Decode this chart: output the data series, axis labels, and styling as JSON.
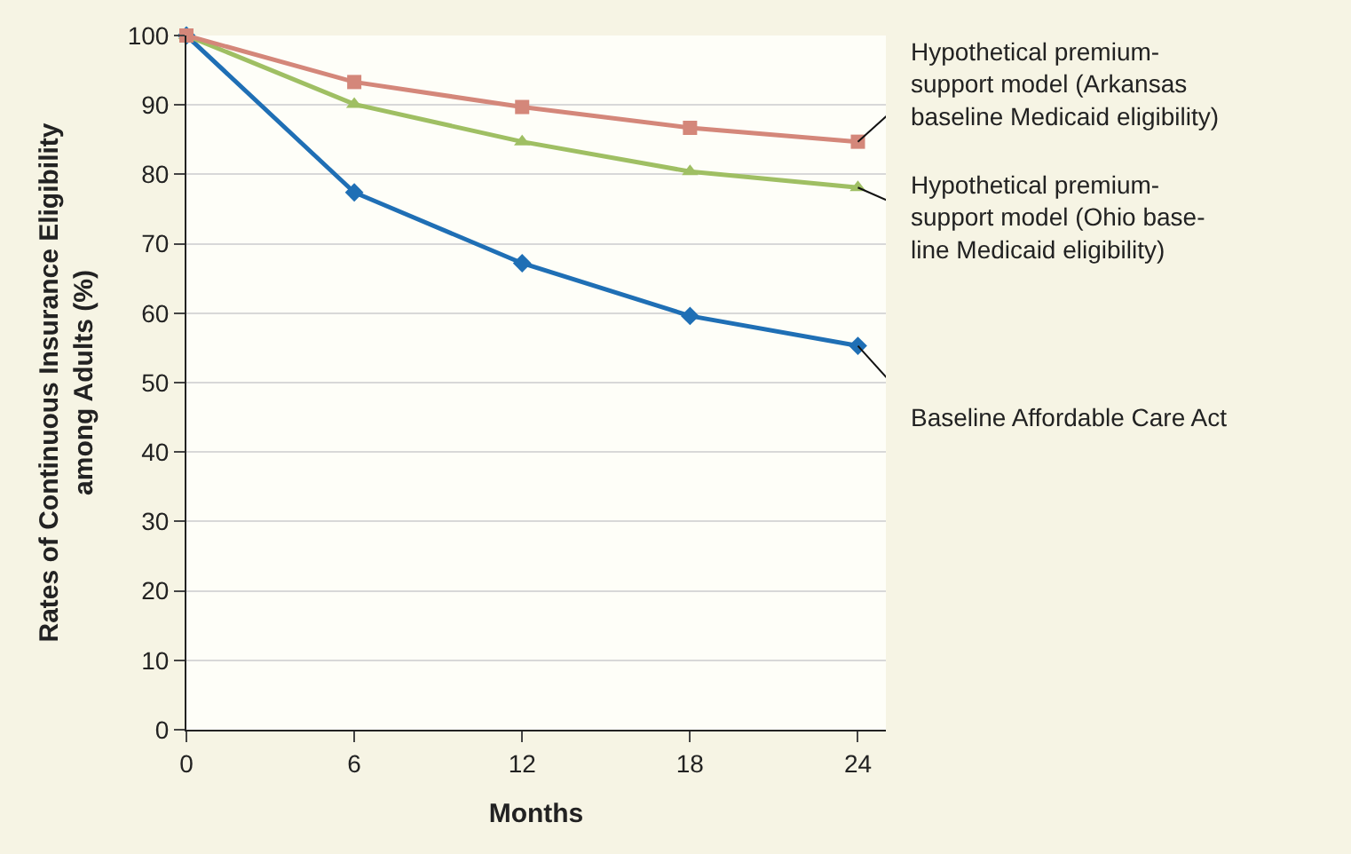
{
  "chart_data": {
    "type": "line",
    "xlabel": "Months",
    "ylabel": "Rates of Continuous Insurance Eligibility\namong Adults (%)",
    "x": [
      0,
      6,
      12,
      18,
      24
    ],
    "series": [
      {
        "name": "Hypothetical premium-\nsupport model (Arkansas\nbaseline Medicaid eligibility)",
        "color": "#d4877a",
        "marker": "square",
        "values": [
          100,
          93.3,
          89.7,
          86.7,
          84.7
        ]
      },
      {
        "name": "Hypothetical premium-\nsupport model (Ohio base-\nline Medicaid eligibility)",
        "color": "#9fbf63",
        "marker": "triangle",
        "values": [
          100,
          90.1,
          84.7,
          80.4,
          78.1
        ]
      },
      {
        "name": "Baseline Affordable Care Act",
        "color": "#1f6fb5",
        "marker": "diamond",
        "values": [
          100,
          77.4,
          67.2,
          59.6,
          55.3
        ]
      }
    ],
    "xlim": [
      0,
      25
    ],
    "xticks": [
      0,
      6,
      12,
      18,
      24
    ],
    "ylim": [
      0,
      100
    ],
    "yticks": [
      0,
      10,
      20,
      30,
      40,
      50,
      60,
      70,
      80,
      90,
      100
    ],
    "grid": "y",
    "legend": false
  }
}
